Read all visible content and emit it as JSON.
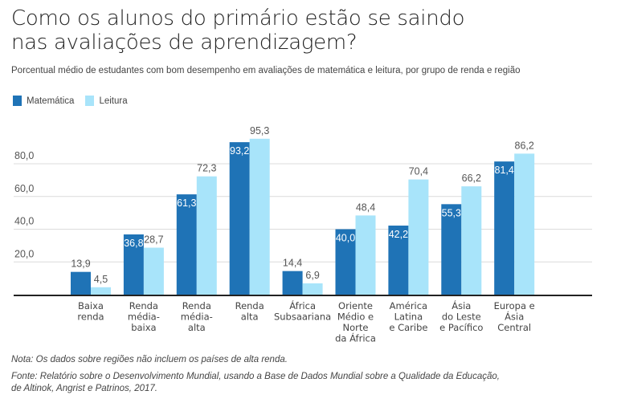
{
  "header": {
    "title_line1": "Como os alunos do primário estão se saindo",
    "title_line2": "nas avaliações de aprendizagem?",
    "subtitle": "Porcentual médio de estudantes com bom desempenho em avaliações de matemática e leitura, por grupo de renda e região"
  },
  "footer": {
    "note": "Nota: Os dados sobre regiões não incluem os países de alta renda.",
    "source_line1": "Fonte: Relatório sobre o Desenvolvimento Mundial, usando a Base de Dados Mundial sobre a Qualidade da Educação,",
    "source_line2": "de Altinok, Angrist e Patrinos, 2017."
  },
  "chart_data": {
    "type": "bar",
    "title": "Como os alunos do primário estão se saindo nas avaliações de aprendizagem?",
    "subtitle": "Porcentual médio de estudantes com bom desempenho em avaliações de matemática e leitura, por grupo de renda e região",
    "xlabel": "",
    "ylabel": "",
    "ylim": [
      0,
      100
    ],
    "yticks": [
      20,
      40,
      60,
      80
    ],
    "ytick_labels": [
      "20,0",
      "40,0",
      "60,0",
      "80,0"
    ],
    "grid": true,
    "legend_position": "top-left",
    "categories": [
      [
        "Baixa",
        "renda"
      ],
      [
        "Renda",
        "média-",
        "baixa"
      ],
      [
        "Renda",
        "média-",
        "alta"
      ],
      [
        "Renda",
        "alta"
      ],
      [
        "África",
        "Subsaariana"
      ],
      [
        "Oriente",
        "Médio e",
        "Norte",
        "da África"
      ],
      [
        "América",
        "Latina",
        "e Caribe"
      ],
      [
        "Ásia",
        "do Leste",
        "e Pacífico"
      ],
      [
        "Europa e",
        "Ásia",
        "Central"
      ]
    ],
    "series": [
      {
        "name": "Matemática",
        "color": "#1f73b6",
        "values": [
          13.9,
          36.8,
          61.3,
          93.2,
          14.4,
          40.0,
          42.2,
          55.3,
          81.4
        ],
        "labels": [
          "13,9",
          "36,8",
          "61,3",
          "93,2",
          "14,4",
          "40,0",
          "42,2",
          "55,3",
          "81,4"
        ]
      },
      {
        "name": "Leitura",
        "color": "#a8e4fa",
        "values": [
          4.5,
          28.7,
          72.3,
          95.3,
          6.9,
          48.4,
          70.4,
          66.2,
          86.2
        ],
        "labels": [
          "4,5",
          "28,7",
          "72,3",
          "95,3",
          "6,9",
          "48,4",
          "70,4",
          "66,2",
          "86,2"
        ]
      }
    ]
  }
}
